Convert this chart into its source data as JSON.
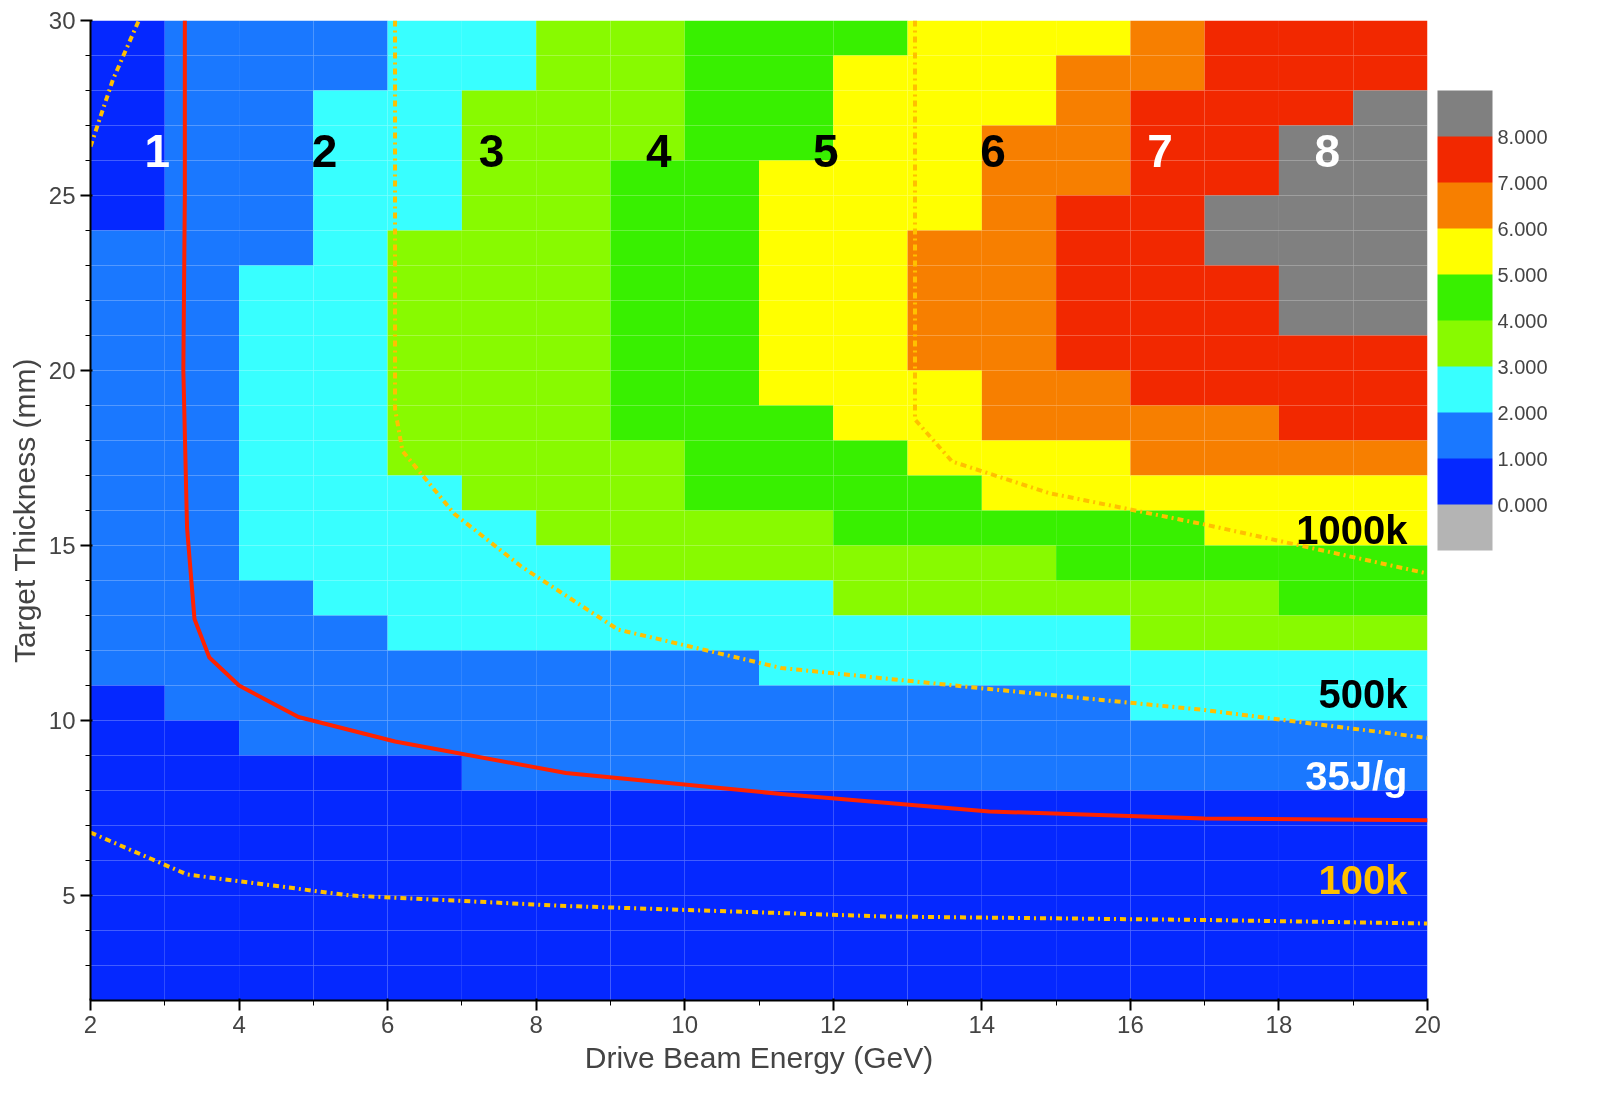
{
  "chart_data": {
    "type": "heatmap",
    "xlabel": "Drive Beam Energy (GeV)",
    "ylabel": "Target Thickness (mm)",
    "x": [
      2.5,
      3.5,
      4.5,
      5.5,
      6.5,
      7.5,
      8.5,
      9.5,
      10.5,
      11.5,
      12.5,
      13.5,
      14.5,
      15.5,
      16.5,
      17.5,
      18.5,
      19.5
    ],
    "y": [
      29.5,
      28.5,
      27.5,
      26.5,
      25.5,
      24.5,
      23.5,
      22.5,
      21.5,
      20.5,
      19.5,
      18.5,
      17.5,
      16.5,
      15.5,
      14.5,
      13.5,
      12.5,
      11.5,
      10.5,
      9.5,
      8.5,
      7.5,
      6.5,
      5.5,
      4.5,
      3.5,
      2.5
    ],
    "cells": [
      [
        0.5,
        1.5,
        1.5,
        1.5,
        2.5,
        2.5,
        3.5,
        3.5,
        4.5,
        4.5,
        4.5,
        5.5,
        5.5,
        5.5,
        6.5,
        7.5,
        7.5,
        7.5
      ],
      [
        0.5,
        1.5,
        1.5,
        1.5,
        2.5,
        2.5,
        3.5,
        3.5,
        4.5,
        4.5,
        5.5,
        5.5,
        5.5,
        6.5,
        6.5,
        7.5,
        7.5,
        7.5
      ],
      [
        0.5,
        1.5,
        1.5,
        2.5,
        2.5,
        3.5,
        3.5,
        3.5,
        4.5,
        4.5,
        5.5,
        5.5,
        5.5,
        6.5,
        7.5,
        7.5,
        7.5,
        8.5
      ],
      [
        0.5,
        1.5,
        1.5,
        2.5,
        2.5,
        3.5,
        3.5,
        3.5,
        4.5,
        4.5,
        5.5,
        5.5,
        6.5,
        6.5,
        7.5,
        7.5,
        8.5,
        8.5
      ],
      [
        0.5,
        1.5,
        1.5,
        2.5,
        2.5,
        3.5,
        3.5,
        4.5,
        4.5,
        5.5,
        5.5,
        5.5,
        6.5,
        6.5,
        7.5,
        7.5,
        8.5,
        8.5
      ],
      [
        0.5,
        1.5,
        1.5,
        2.5,
        2.5,
        3.5,
        3.5,
        4.5,
        4.5,
        5.5,
        5.5,
        5.5,
        6.5,
        7.5,
        7.5,
        8.5,
        8.5,
        8.5
      ],
      [
        1.5,
        1.5,
        1.5,
        2.5,
        3.5,
        3.5,
        3.5,
        4.5,
        4.5,
        5.5,
        5.5,
        6.5,
        6.5,
        7.5,
        7.5,
        8.5,
        8.5,
        8.5
      ],
      [
        1.5,
        1.5,
        2.5,
        2.5,
        3.5,
        3.5,
        3.5,
        4.5,
        4.5,
        5.5,
        5.5,
        6.5,
        6.5,
        7.5,
        7.5,
        7.5,
        8.5,
        8.5
      ],
      [
        1.5,
        1.5,
        2.5,
        2.5,
        3.5,
        3.5,
        3.5,
        4.5,
        4.5,
        5.5,
        5.5,
        6.5,
        6.5,
        7.5,
        7.5,
        7.5,
        8.5,
        8.5
      ],
      [
        1.5,
        1.5,
        2.5,
        2.5,
        3.5,
        3.5,
        3.5,
        4.5,
        4.5,
        5.5,
        5.5,
        6.5,
        6.5,
        7.5,
        7.5,
        7.5,
        7.5,
        7.5
      ],
      [
        1.5,
        1.5,
        2.5,
        2.5,
        3.5,
        3.5,
        3.5,
        4.5,
        4.5,
        5.5,
        5.5,
        5.5,
        6.5,
        6.5,
        7.5,
        7.5,
        7.5,
        7.5
      ],
      [
        1.5,
        1.5,
        2.5,
        2.5,
        3.5,
        3.5,
        3.5,
        4.5,
        4.5,
        4.5,
        5.5,
        5.5,
        6.5,
        6.5,
        6.5,
        6.5,
        7.5,
        7.5
      ],
      [
        1.5,
        1.5,
        2.5,
        2.5,
        3.5,
        3.5,
        3.5,
        3.5,
        4.5,
        4.5,
        4.5,
        5.5,
        5.5,
        5.5,
        6.5,
        6.5,
        6.5,
        6.5
      ],
      [
        1.5,
        1.5,
        2.5,
        2.5,
        2.5,
        3.5,
        3.5,
        3.5,
        4.5,
        4.5,
        4.5,
        4.5,
        5.5,
        5.5,
        5.5,
        5.5,
        5.5,
        5.5
      ],
      [
        1.5,
        1.5,
        2.5,
        2.5,
        2.5,
        2.5,
        3.5,
        3.5,
        3.5,
        3.5,
        4.5,
        4.5,
        4.5,
        4.5,
        4.5,
        5.5,
        5.5,
        5.5
      ],
      [
        1.5,
        1.5,
        2.5,
        2.5,
        2.5,
        2.5,
        2.5,
        3.5,
        3.5,
        3.5,
        3.5,
        3.5,
        3.5,
        4.5,
        4.5,
        4.5,
        4.5,
        4.5
      ],
      [
        1.5,
        1.5,
        1.5,
        2.5,
        2.5,
        2.5,
        2.5,
        2.5,
        2.5,
        2.5,
        3.5,
        3.5,
        3.5,
        3.5,
        3.5,
        3.5,
        4.5,
        4.5
      ],
      [
        1.5,
        1.5,
        1.5,
        1.5,
        2.5,
        2.5,
        2.5,
        2.5,
        2.5,
        2.5,
        2.5,
        2.5,
        2.5,
        2.5,
        3.5,
        3.5,
        3.5,
        3.5
      ],
      [
        1.5,
        1.5,
        1.5,
        1.5,
        1.5,
        1.5,
        1.5,
        1.5,
        1.5,
        2.5,
        2.5,
        2.5,
        2.5,
        2.5,
        2.5,
        2.5,
        2.5,
        2.5
      ],
      [
        0.5,
        1.5,
        1.5,
        1.5,
        1.5,
        1.5,
        1.5,
        1.5,
        1.5,
        1.5,
        1.5,
        1.5,
        1.5,
        1.5,
        2.5,
        2.5,
        2.5,
        2.5
      ],
      [
        0.5,
        0.5,
        1.5,
        1.5,
        1.5,
        1.5,
        1.5,
        1.5,
        1.5,
        1.5,
        1.5,
        1.5,
        1.5,
        1.5,
        1.5,
        1.5,
        1.5,
        1.5
      ],
      [
        0.5,
        0.5,
        0.5,
        0.5,
        0.5,
        1.5,
        1.5,
        1.5,
        1.5,
        1.5,
        1.5,
        1.5,
        1.5,
        1.5,
        1.5,
        1.5,
        1.5,
        1.5
      ],
      [
        0.5,
        0.5,
        0.5,
        0.5,
        0.5,
        0.5,
        0.5,
        0.5,
        0.5,
        0.5,
        0.5,
        0.5,
        0.5,
        0.5,
        0.5,
        0.5,
        0.5,
        0.5
      ],
      [
        0.5,
        0.5,
        0.5,
        0.5,
        0.5,
        0.5,
        0.5,
        0.5,
        0.5,
        0.5,
        0.5,
        0.5,
        0.5,
        0.5,
        0.5,
        0.5,
        0.5,
        0.5
      ],
      [
        0.5,
        0.5,
        0.5,
        0.5,
        0.5,
        0.5,
        0.5,
        0.5,
        0.5,
        0.5,
        0.5,
        0.5,
        0.5,
        0.5,
        0.5,
        0.5,
        0.5,
        0.5
      ],
      [
        0.5,
        0.5,
        0.5,
        0.5,
        0.5,
        0.5,
        0.5,
        0.5,
        0.5,
        0.5,
        0.5,
        0.5,
        0.5,
        0.5,
        0.5,
        0.5,
        0.5,
        0.5
      ],
      [
        0.5,
        0.5,
        0.5,
        0.5,
        0.5,
        0.5,
        0.5,
        0.5,
        0.5,
        0.5,
        0.5,
        0.5,
        0.5,
        0.5,
        0.5,
        0.5,
        0.5,
        0.5
      ],
      [
        0.5,
        0.5,
        0.5,
        0.5,
        0.5,
        0.5,
        0.5,
        0.5,
        0.5,
        0.5,
        0.5,
        0.5,
        0.5,
        0.5,
        0.5,
        0.5,
        0.5,
        0.5
      ]
    ],
    "colors": [
      "#b4b4b4",
      "#0528ff",
      "#1a78ff",
      "#38ffff",
      "#88fa00",
      "#38f000",
      "#ffff00",
      "#f77f00",
      "#f22800",
      "#808080"
    ],
    "clim": [
      -1,
      9
    ],
    "cticks": [
      {
        "value": 0,
        "label": "0.000"
      },
      {
        "value": 1,
        "label": "1.000"
      },
      {
        "value": 2,
        "label": "2.000"
      },
      {
        "value": 3,
        "label": "3.000"
      },
      {
        "value": 4,
        "label": "4.000"
      },
      {
        "value": 5,
        "label": "5.000"
      },
      {
        "value": 6,
        "label": "6.000"
      },
      {
        "value": 7,
        "label": "7.000"
      },
      {
        "value": 8,
        "label": "8.000"
      }
    ],
    "series": [
      {
        "type": "line",
        "name": "35J/g",
        "color": "#ff2200",
        "line_style": "solid",
        "x": [
          3.27,
          3.27,
          3.25,
          3.3,
          3.4,
          3.6,
          4.0,
          4.8,
          6.1,
          8.4,
          11.3,
          14.1,
          17.0,
          20.0
        ],
        "values": [
          30,
          25,
          20,
          15.5,
          12.9,
          11.8,
          11.0,
          10.1,
          9.4,
          8.5,
          7.9,
          7.4,
          7.2,
          7.15
        ]
      },
      {
        "type": "line",
        "name": "100k",
        "color": "#ffc000",
        "line_style": "dashdot",
        "x": [
          2.0,
          3.3,
          5.5,
          8.4,
          12.7,
          17.0,
          20.0
        ],
        "values": [
          6.8,
          5.6,
          5.0,
          4.7,
          4.4,
          4.3,
          4.2
        ]
      },
      {
        "type": "line",
        "name": "500k",
        "color": "#ffc000",
        "line_style": "dashdot",
        "x": [
          6.1,
          6.1,
          6.1,
          6.2,
          6.9,
          7.8,
          9.1,
          11.3,
          14.1,
          17.0,
          20.0
        ],
        "values": [
          30,
          25,
          18.9,
          17.7,
          15.9,
          14.4,
          12.6,
          11.5,
          10.9,
          10.3,
          9.5
        ]
      },
      {
        "type": "line",
        "name": "1000k",
        "color": "#ffc000",
        "line_style": "dashdot",
        "x": [
          13.1,
          13.1,
          13.1,
          13.6,
          14.9,
          17.0,
          20.0
        ],
        "values": [
          30,
          25,
          18.6,
          17.4,
          16.5,
          15.6,
          14.2
        ]
      },
      {
        "type": "line",
        "color": "#ffc000",
        "line_style": "dashdot",
        "x": [
          2.0,
          2.3,
          2.65
        ],
        "values": [
          26.4,
          28.3,
          30
        ]
      }
    ],
    "annotations": [
      "1",
      "2",
      "3",
      "4",
      "5",
      "6",
      "7",
      "8"
    ],
    "xlim": [
      2,
      20
    ],
    "ylim": [
      2,
      30
    ],
    "xticks": [
      2,
      {
        "value": 3,
        "label": null
      },
      4,
      {
        "value": 5,
        "label": null
      },
      6,
      {
        "value": 7,
        "label": null
      },
      8,
      {
        "value": 9,
        "label": null
      },
      10,
      {
        "value": 11,
        "label": null
      },
      12,
      {
        "value": 13,
        "label": null
      },
      14,
      {
        "value": 15,
        "label": null
      },
      16,
      {
        "value": 17,
        "label": null
      },
      18,
      {
        "value": 19,
        "label": null
      },
      20
    ],
    "yticks": [
      {
        "value": 3,
        "label": null
      },
      {
        "value": 4,
        "label": null
      },
      5,
      {
        "value": 6,
        "label": null
      },
      {
        "value": 7,
        "label": null
      },
      {
        "value": 8,
        "label": null
      },
      {
        "value": 9,
        "label": null
      },
      10,
      {
        "value": 11,
        "label": null
      },
      {
        "value": 12,
        "label": null
      },
      {
        "value": 13,
        "label": null
      },
      {
        "value": 14,
        "label": null
      },
      15,
      {
        "value": 16,
        "label": null
      },
      {
        "value": 17,
        "label": null
      },
      {
        "value": 18,
        "label": null
      },
      {
        "value": 19,
        "label": null
      },
      20,
      {
        "value": 21,
        "label": null
      },
      {
        "value": 22,
        "label": null
      },
      {
        "value": 23,
        "label": null
      },
      {
        "value": 24,
        "label": null
      },
      25,
      {
        "value": 26,
        "label": null
      },
      {
        "value": 27,
        "label": null
      },
      {
        "value": 28,
        "label": null
      },
      {
        "value": 29,
        "label": null
      },
      30
    ],
    "grid": false
  }
}
